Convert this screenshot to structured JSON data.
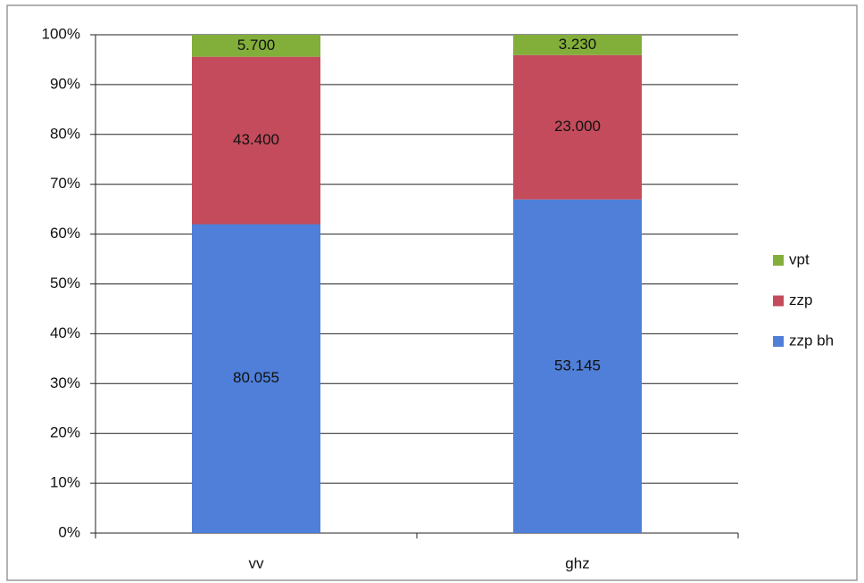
{
  "chart_data": {
    "type": "bar",
    "stacking": "percent",
    "categories": [
      "vv",
      "ghz"
    ],
    "series": [
      {
        "name": "zzp bh",
        "color": "#4f7fd8",
        "values": [
          80.055,
          53.145
        ],
        "value_labels": [
          "80.055",
          "53.145"
        ]
      },
      {
        "name": "zzp",
        "color": "#c44b5b",
        "values": [
          43.4,
          23.0
        ],
        "value_labels": [
          "43.400",
          "23.000"
        ]
      },
      {
        "name": "vpt",
        "color": "#82ae3a",
        "values": [
          5.7,
          3.23
        ],
        "value_labels": [
          "5.700",
          "3.230"
        ]
      }
    ],
    "ylim": [
      0,
      100
    ],
    "yticks": [
      {
        "value": 0,
        "label": "0%"
      },
      {
        "value": 10,
        "label": "10%"
      },
      {
        "value": 20,
        "label": "20%"
      },
      {
        "value": 30,
        "label": "30%"
      },
      {
        "value": 40,
        "label": "40%"
      },
      {
        "value": 50,
        "label": "50%"
      },
      {
        "value": 60,
        "label": "60%"
      },
      {
        "value": 70,
        "label": "70%"
      },
      {
        "value": 80,
        "label": "80%"
      },
      {
        "value": 90,
        "label": "90%"
      },
      {
        "value": 100,
        "label": "100%"
      }
    ],
    "grid": true,
    "legend": "right"
  }
}
